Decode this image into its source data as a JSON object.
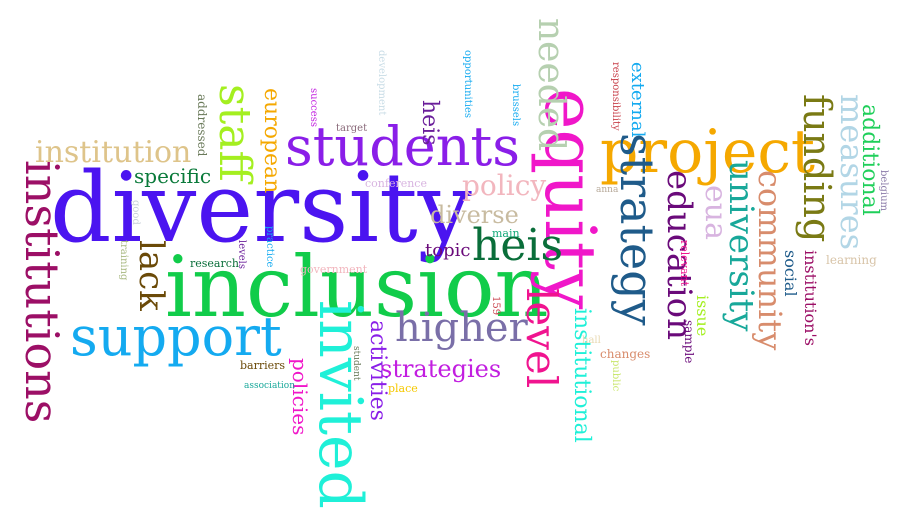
{
  "words": [
    {
      "id": "diversity",
      "text": "diversity",
      "color": "#4b14f0"
    },
    {
      "id": "inclusion",
      "text": "inclusion",
      "color": "#11cc4a"
    },
    {
      "id": "equity",
      "text": "equity",
      "color": "#f017c9"
    },
    {
      "id": "project",
      "text": "project",
      "color": "#f5a800"
    },
    {
      "id": "students",
      "text": "students",
      "color": "#8a1ee8"
    },
    {
      "id": "support",
      "text": "support",
      "color": "#14aaf0"
    },
    {
      "id": "invited",
      "text": "invited",
      "color": "#1ff0d8"
    },
    {
      "id": "institutions",
      "text": "institutions",
      "color": "#9c0f66"
    },
    {
      "id": "institution",
      "text": "institution",
      "color": "#dec48a"
    },
    {
      "id": "staff",
      "text": "staff",
      "color": "#a4ef20"
    },
    {
      "id": "strategy",
      "text": "strategy",
      "color": "#1f5b8a"
    },
    {
      "id": "heis",
      "text": "heis",
      "color": "#0a6e3a"
    },
    {
      "id": "higher",
      "text": "higher",
      "color": "#7a6fa8"
    },
    {
      "id": "level",
      "text": "level",
      "color": "#f0148f"
    },
    {
      "id": "needed",
      "text": "needed",
      "color": "#b6d0b0"
    },
    {
      "id": "funding",
      "text": "funding",
      "color": "#7a7a14"
    },
    {
      "id": "measures",
      "text": "measures",
      "color": "#b2d6e6"
    },
    {
      "id": "community",
      "text": "community",
      "color": "#d88c6c"
    },
    {
      "id": "university",
      "text": "university",
      "color": "#18a89a"
    },
    {
      "id": "education",
      "text": "education",
      "color": "#6a0a7a"
    },
    {
      "id": "policy",
      "text": "policy",
      "color": "#f2b6be"
    },
    {
      "id": "diverse",
      "text": "diverse",
      "color": "#c8bba0"
    },
    {
      "id": "lack",
      "text": "lack",
      "color": "#6b4a08"
    },
    {
      "id": "strategies",
      "text": "strategies",
      "color": "#c21ee0"
    },
    {
      "id": "activities",
      "text": "activities",
      "color": "#8a1ee8"
    },
    {
      "id": "institutional",
      "text": "institutional",
      "color": "#1ff0d8"
    },
    {
      "id": "european",
      "text": "european",
      "color": "#f5a800"
    },
    {
      "id": "specific",
      "text": "specific",
      "color": "#0a7a3a"
    },
    {
      "id": "additional",
      "text": "additional",
      "color": "#1fcf5a"
    },
    {
      "id": "eua",
      "text": "eua",
      "color": "#d8b4e0"
    },
    {
      "id": "heis2",
      "text": "heis",
      "color": "#6a1e9a"
    },
    {
      "id": "topic",
      "text": "topic",
      "color": "#6a0a7a"
    },
    {
      "id": "policies",
      "text": "policies",
      "color": "#f017c9"
    },
    {
      "id": "external",
      "text": "external",
      "color": "#14aaf0"
    },
    {
      "id": "social",
      "text": "social",
      "color": "#1f5b8a"
    },
    {
      "id": "institutions2",
      "text": "institution's",
      "color": "#9c0f66"
    },
    {
      "id": "issue",
      "text": "issue",
      "color": "#a4ef20"
    },
    {
      "id": "changes",
      "text": "changes",
      "color": "#d88c6c"
    },
    {
      "id": "sample",
      "text": "sample",
      "color": "#6a0a7a"
    },
    {
      "id": "learning",
      "text": "learning",
      "color": "#d8c4a8"
    },
    {
      "id": "belgium",
      "text": "belgium",
      "color": "#8a7aa8"
    },
    {
      "id": "relevant",
      "text": "relevant",
      "color": "#f0148f"
    },
    {
      "id": "public",
      "text": "public",
      "color": "#c8e66a"
    },
    {
      "id": "hall",
      "text": "hall",
      "color": "#e8d8b0"
    },
    {
      "id": "anna",
      "text": "anna",
      "color": "#b6a898"
    },
    {
      "id": "main",
      "text": "main",
      "color": "#14aa7a"
    },
    {
      "id": "n159",
      "text": "159",
      "color": "#c8404a"
    },
    {
      "id": "place",
      "text": "place",
      "color": "#f5c800"
    },
    {
      "id": "student",
      "text": "student",
      "color": "#6a7a5a"
    },
    {
      "id": "association",
      "text": "association",
      "color": "#18a89a"
    },
    {
      "id": "barriers",
      "text": "barriers",
      "color": "#6b4a08"
    },
    {
      "id": "practice",
      "text": "practice",
      "color": "#14aaf0"
    },
    {
      "id": "levels",
      "text": "levels",
      "color": "#6a1e9a"
    },
    {
      "id": "research",
      "text": "research",
      "color": "#0a6e3a"
    },
    {
      "id": "government",
      "text": "government",
      "color": "#f2b6be"
    },
    {
      "id": "conference",
      "text": "conference",
      "color": "#d8b4e0"
    },
    {
      "id": "target",
      "text": "target",
      "color": "#8a6a7a"
    },
    {
      "id": "success",
      "text": "success",
      "color": "#c21ee0"
    },
    {
      "id": "development",
      "text": "development",
      "color": "#c8dce6"
    },
    {
      "id": "opportunities",
      "text": "opportunities",
      "color": "#14aaf0"
    },
    {
      "id": "brussels",
      "text": "brussels",
      "color": "#14aaf0"
    },
    {
      "id": "responsibility",
      "text": "responsibility",
      "color": "#c8404a"
    },
    {
      "id": "addressed",
      "text": "addressed",
      "color": "#6a7a5a"
    },
    {
      "id": "good",
      "text": "good",
      "color": "#c8d0d8"
    },
    {
      "id": "training",
      "text": "training",
      "color": "#a8b880"
    }
  ]
}
